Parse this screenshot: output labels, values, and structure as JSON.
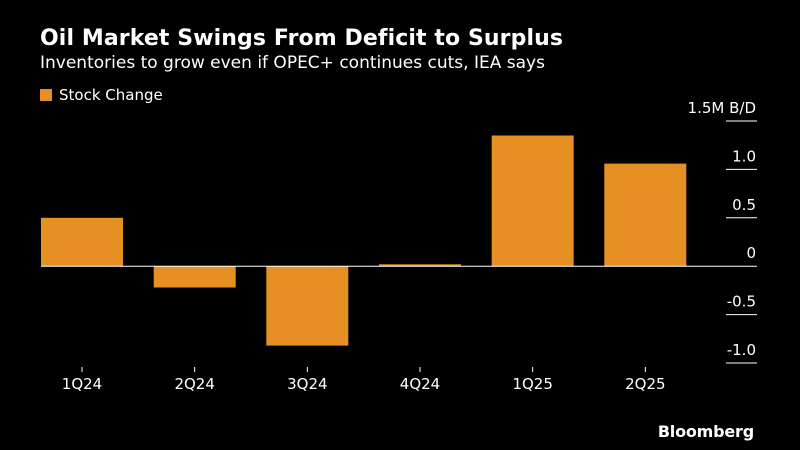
{
  "title": "Oil Market Swings From Deficit to Surplus",
  "subtitle": "Inventories to grow even if OPEC+ continues cuts, IEA says",
  "brand": "Bloomberg",
  "colors": {
    "background": "#000000",
    "bar": "#e68f22",
    "text": "#ffffff",
    "gridline": "#ffffff"
  },
  "chart_data": {
    "type": "bar",
    "categories": [
      "1Q24",
      "2Q24",
      "3Q24",
      "4Q24",
      "1Q25",
      "2Q25"
    ],
    "series": [
      {
        "name": "Stock Change",
        "values": [
          0.5,
          -0.22,
          -0.82,
          0.02,
          1.35,
          1.06
        ]
      }
    ],
    "ylabel": "",
    "y_unit_label": "1.5M B/D",
    "ylim": [
      -1.0,
      1.5
    ],
    "yticks": [
      1.5,
      1.0,
      0.5,
      0,
      -0.5,
      -1.0
    ],
    "ytick_labels": [
      "1.5M B/D",
      "1.0",
      "0.5",
      "0",
      "-0.5",
      "-1.0"
    ],
    "legend_position": "top-left",
    "grid": false,
    "zero_line": true
  }
}
